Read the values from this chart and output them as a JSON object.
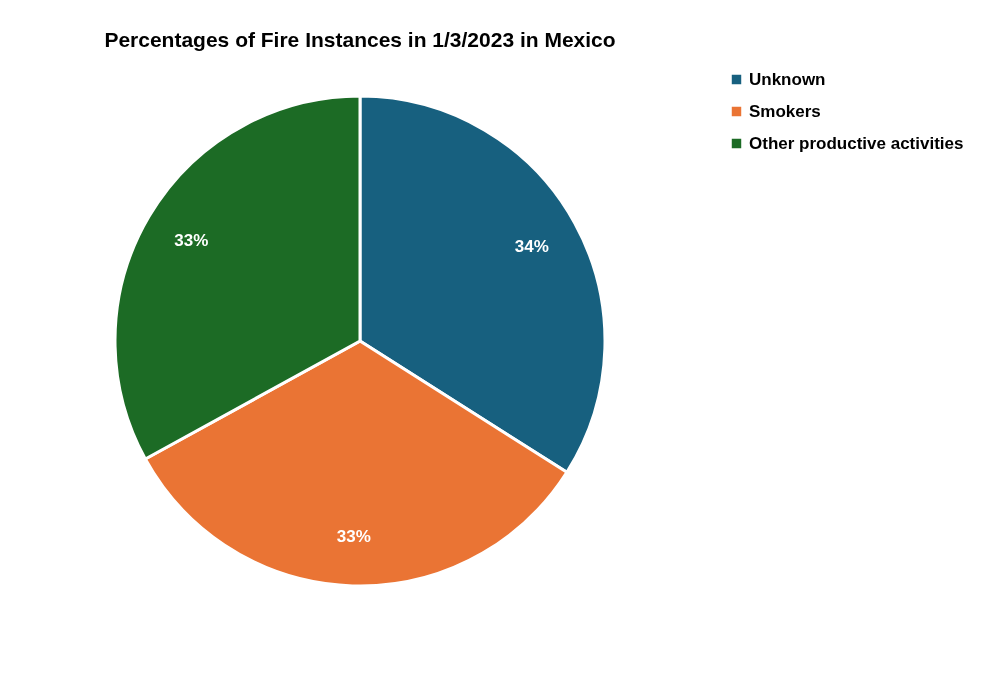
{
  "chart_data": {
    "type": "pie",
    "title": "Percentages of Fire Instances in 1/3/2023 in Mexico",
    "categories": [
      "Unknown",
      "Smokers",
      "Other productive activities"
    ],
    "values": [
      34,
      33,
      33
    ],
    "colors": [
      "#17607f",
      "#ea7434",
      "#1c6b25"
    ],
    "value_labels": [
      "34%",
      "33%",
      "33%"
    ],
    "legend": "right"
  }
}
